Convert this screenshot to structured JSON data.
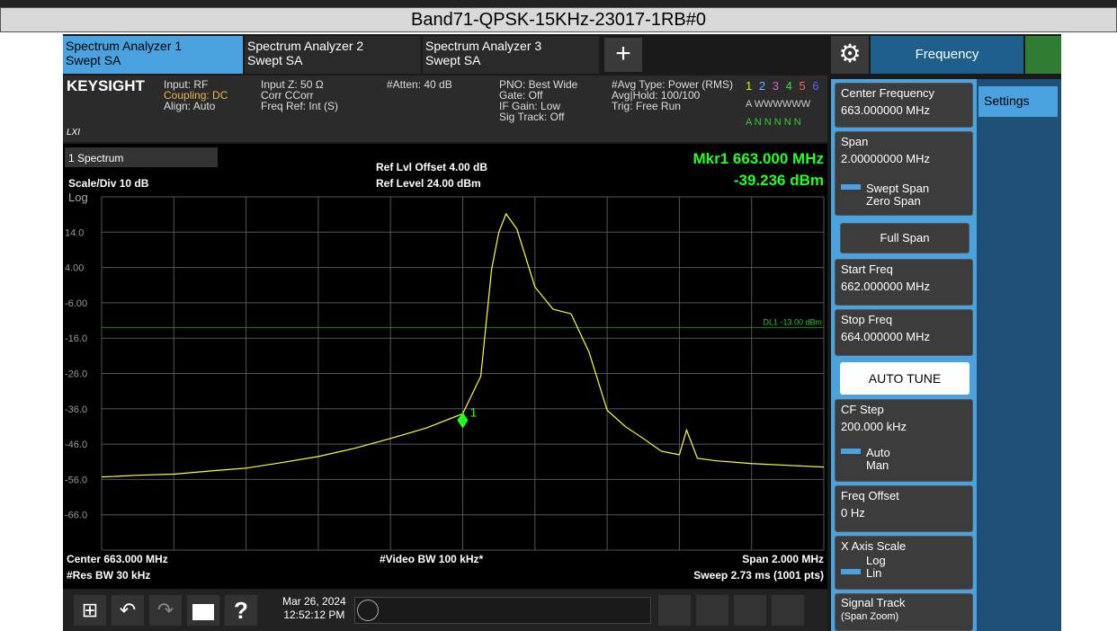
{
  "title": "Band71-QPSK-15KHz-23017-1RB#0",
  "tabs": [
    {
      "name": "Spectrum Analyzer 1",
      "mode": "Swept SA"
    },
    {
      "name": "Spectrum Analyzer 2",
      "mode": "Swept SA"
    },
    {
      "name": "Spectrum Analyzer 3",
      "mode": "Swept SA"
    }
  ],
  "menu": "Frequency",
  "info": {
    "logo": "KEYSIGHT",
    "lxi": "LXI",
    "col1": [
      "Input: RF",
      "Coupling: DC",
      "Align: Auto"
    ],
    "col2": [
      "Input Z: 50 Ω",
      "Corr CCorr",
      "Freq Ref: Int (S)"
    ],
    "col3": [
      "#Atten: 40 dB"
    ],
    "col4": [
      "PNO: Best Wide",
      "Gate: Off",
      "IF Gain: Low",
      "Sig Track: Off"
    ],
    "col5": [
      "#Avg Type: Power (RMS)",
      "Avg|Hold: 100/100",
      "Trig: Free Run"
    ],
    "traces": [
      "1",
      "2",
      "3",
      "4",
      "5",
      "6"
    ],
    "types": "A WWWWWW",
    "dets": "A N N N N N"
  },
  "plot": {
    "view": "1 Spectrum",
    "scale": "Scale/Div 10 dB",
    "log": "Log",
    "offset": "Ref Lvl Offset 4.00 dB",
    "ref": "Ref Level 24.00 dBm",
    "mkr_freq": "Mkr1 663.000 MHz",
    "mkr_amp": "-39.236 dBm",
    "center": "Center 663.000 MHz",
    "rbw": "#Res BW 30 kHz",
    "vbw": "#Video BW 100 kHz*",
    "span": "Span 2.000 MHz",
    "sweep": "Sweep 2.73 ms (1001 pts)",
    "xlim": [
      662,
      664
    ],
    "ylim": [
      -76,
      24
    ],
    "yticks": [
      {
        "value": 14,
        "label": "14.0"
      },
      {
        "value": 4,
        "label": "4.00"
      },
      {
        "value": -6,
        "label": "-6.00"
      },
      {
        "value": -16,
        "label": "-16.0"
      },
      {
        "value": -26,
        "label": "-26.0"
      },
      {
        "value": -36,
        "label": "-36.0"
      },
      {
        "value": -46,
        "label": "-46.0"
      },
      {
        "value": -56,
        "label": "-56.0"
      },
      {
        "value": -66,
        "label": "-66.0"
      }
    ],
    "display_line": {
      "label": "DL1 -13.00 dBm",
      "value": -13
    },
    "marker": {
      "label": "1",
      "x": 663,
      "value": -39.236
    },
    "trace": {
      "x": [
        662,
        662.1,
        662.2,
        662.3,
        662.4,
        662.5,
        662.6,
        662.7,
        662.8,
        662.9,
        663,
        663.05,
        663.08,
        663.1,
        663.12,
        663.15,
        663.2,
        663.25,
        663.3,
        663.35,
        663.4,
        663.45,
        663.5,
        663.55,
        663.6,
        663.62,
        663.65,
        663.7,
        663.8,
        663.9,
        664
      ],
      "values": [
        -55.3,
        -54.8,
        -54.5,
        -53.6,
        -52.8,
        -51.2,
        -49.5,
        -47.2,
        -44.4,
        -41.4,
        -37.4,
        -26.8,
        3.5,
        14,
        19.2,
        14.9,
        -1.5,
        -7.8,
        -9.1,
        -20,
        -36.4,
        -41,
        -44.4,
        -48,
        -49,
        -42,
        -50,
        -50.7,
        -51.5,
        -52,
        -52.5
      ]
    }
  },
  "panel": {
    "center_label": "Center Frequency",
    "center_value": "663.000000 MHz",
    "span_label": "Span",
    "span_value": "2.00000000 MHz",
    "swept": "Swept Span",
    "zero": "Zero Span",
    "full": "Full Span",
    "start_label": "Start Freq",
    "start_value": "662.000000 MHz",
    "stop_label": "Stop Freq",
    "stop_value": "664.000000 MHz",
    "auto_tune": "AUTO TUNE",
    "cf_label": "CF Step",
    "cf_value": "200.000 kHz",
    "auto": "Auto",
    "man": "Man",
    "offset_label": "Freq Offset",
    "offset_value": "0 Hz",
    "xscale_label": "X Axis Scale",
    "log": "Log",
    "lin": "Lin",
    "track_label": "Signal Track",
    "track_sub": "(Span Zoom)",
    "settings": "Settings"
  },
  "toolbar": {
    "date": "Mar 26, 2024",
    "time": "12:52:12 PM"
  }
}
